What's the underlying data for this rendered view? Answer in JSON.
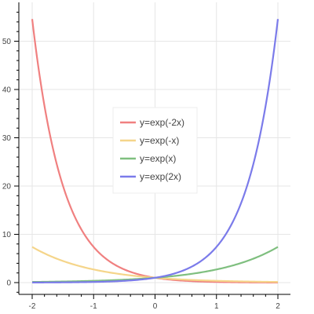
{
  "chart_data": {
    "type": "line",
    "title": "",
    "xlabel": "",
    "ylabel": "",
    "xlim": [
      -2,
      2
    ],
    "ylim": [
      -3.5,
      57
    ],
    "x_ticks": [
      -2,
      -1,
      0,
      1,
      2
    ],
    "y_ticks": [
      0,
      10,
      20,
      30,
      40,
      50
    ],
    "grid": true,
    "legend_position": "center",
    "series": [
      {
        "name": "y=exp(-2x)",
        "function": "exp(-2x)",
        "color": "#f08080",
        "x": [
          -2,
          -1.5,
          -1,
          -0.5,
          0,
          0.5,
          1,
          1.5,
          2
        ],
        "values": [
          54.6,
          20.09,
          7.39,
          2.72,
          1,
          0.37,
          0.14,
          0.05,
          0.02
        ]
      },
      {
        "name": "y=exp(-x)",
        "function": "exp(-x)",
        "color": "#f5d58a",
        "x": [
          -2,
          -1.5,
          -1,
          -0.5,
          0,
          0.5,
          1,
          1.5,
          2
        ],
        "values": [
          7.39,
          4.48,
          2.72,
          1.65,
          1,
          0.61,
          0.37,
          0.22,
          0.14
        ]
      },
      {
        "name": "y=exp(x)",
        "function": "exp(x)",
        "color": "#7fbf7f",
        "x": [
          -2,
          -1.5,
          -1,
          -0.5,
          0,
          0.5,
          1,
          1.5,
          2
        ],
        "values": [
          0.14,
          0.22,
          0.37,
          0.61,
          1,
          1.65,
          2.72,
          4.48,
          7.39
        ]
      },
      {
        "name": "y=exp(2x)",
        "function": "exp(2x)",
        "color": "#7b7bea",
        "x": [
          -2,
          -1.5,
          -1,
          -0.5,
          0,
          0.5,
          1,
          1.5,
          2
        ],
        "values": [
          0.02,
          0.05,
          0.14,
          0.37,
          1,
          2.72,
          7.39,
          20.09,
          54.6
        ]
      }
    ]
  }
}
